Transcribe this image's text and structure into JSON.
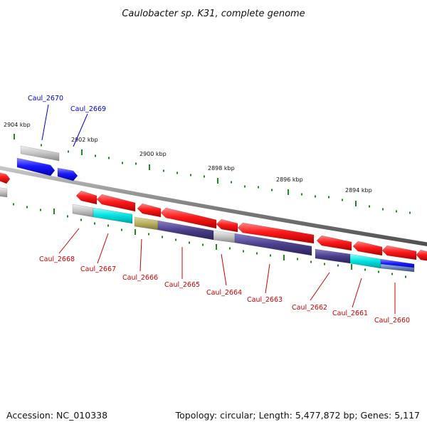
{
  "title": "Caulobacter sp. K31, complete genome",
  "ticks": [
    {
      "label": "2904 kbp"
    },
    {
      "label": "2902 kbp"
    },
    {
      "label": "2900 kbp"
    },
    {
      "label": "2898 kbp"
    },
    {
      "label": "2896 kbp"
    },
    {
      "label": "2894 kbp"
    }
  ],
  "genes_forward": [
    {
      "label": "Caul_2670"
    },
    {
      "label": "Caul_2669"
    }
  ],
  "genes_reverse": [
    {
      "label": "Caul_2668"
    },
    {
      "label": "Caul_2667"
    },
    {
      "label": "Caul_2666"
    },
    {
      "label": "Caul_2665"
    },
    {
      "label": "Caul_2664"
    },
    {
      "label": "Caul_2663"
    },
    {
      "label": "Caul_2662"
    },
    {
      "label": "Caul_2661"
    },
    {
      "label": "Caul_2660"
    }
  ],
  "colors": {
    "forward_gene": "#0000ee",
    "reverse_gene": "#ee0000",
    "forward_label": "#0000cc",
    "reverse_label": "#cc0000",
    "backbone": "#808080",
    "tick": "#228822",
    "cds_grey": "#bfbfbf",
    "cds_cyan": "#00e5e5",
    "cds_olive": "#b8b060",
    "cds_purple": "#4a3f8a"
  },
  "footer": {
    "accession": "Accession: NC_010338",
    "summary": "Topology: circular; Length: 5,477,872 bp; Genes: 5,117"
  }
}
